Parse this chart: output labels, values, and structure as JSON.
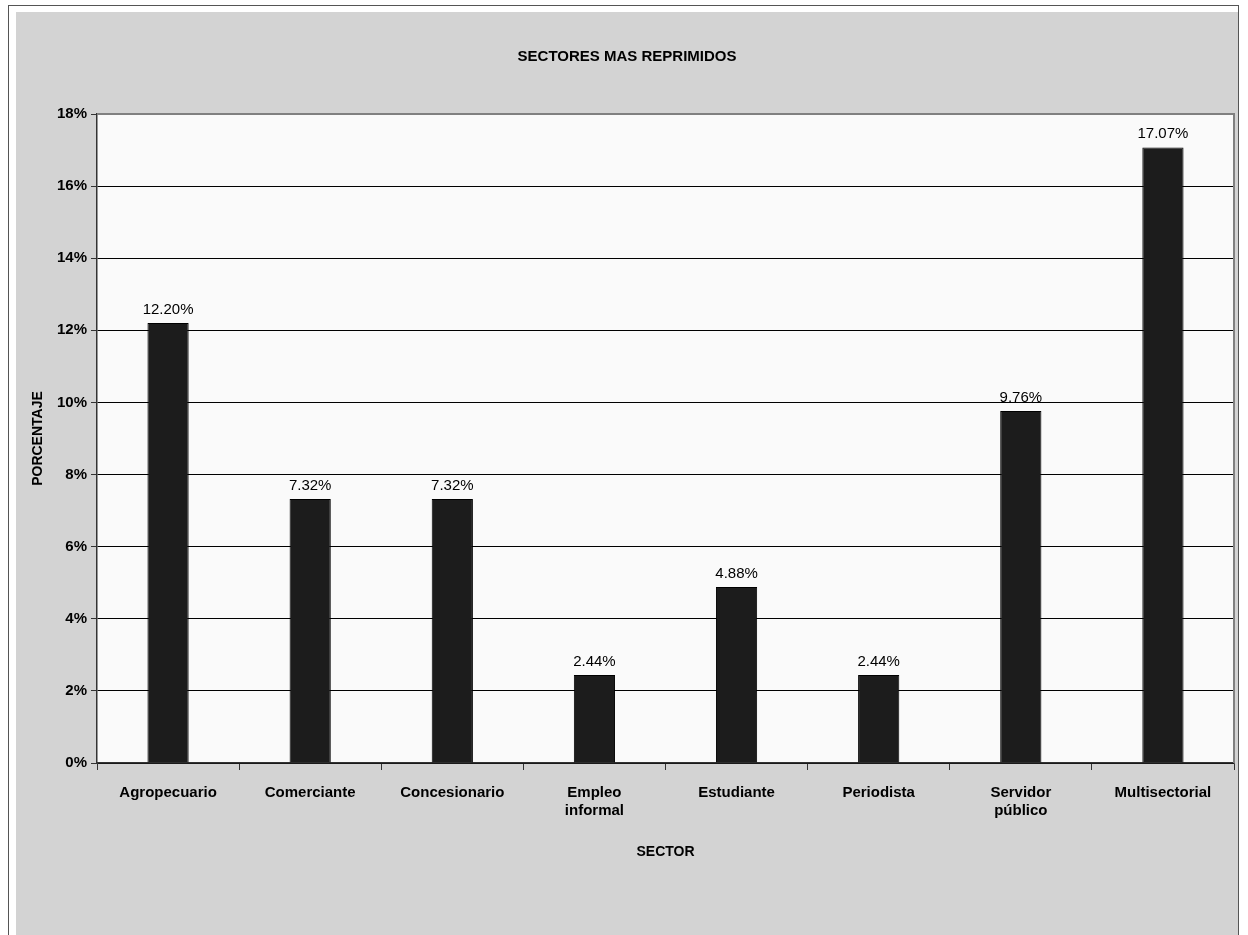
{
  "chart_data": {
    "type": "bar",
    "title": "SECTORES MAS REPRIMIDOS",
    "xlabel": "SECTOR",
    "ylabel": "PORCENTAJE",
    "categories": [
      "Agropecuario",
      "Comerciante",
      "Concesionario",
      "Empleo informal",
      "Estudiante",
      "Periodista",
      "Servidor público",
      "Multisectorial"
    ],
    "values": [
      12.2,
      7.32,
      7.32,
      2.44,
      4.88,
      2.44,
      9.76,
      17.07
    ],
    "value_labels": [
      "12.20%",
      "7.32%",
      "7.32%",
      "2.44%",
      "4.88%",
      "2.44%",
      "9.76%",
      "17.07%"
    ],
    "color": "#1c1c1c",
    "ylim": [
      0,
      18
    ],
    "yticks": [
      {
        "value": 0,
        "label": "0%"
      },
      {
        "value": 2,
        "label": "2%"
      },
      {
        "value": 4,
        "label": "4%"
      },
      {
        "value": 6,
        "label": "6%"
      },
      {
        "value": 8,
        "label": "8%"
      },
      {
        "value": 10,
        "label": "10%"
      },
      {
        "value": 12,
        "label": "12%"
      },
      {
        "value": 14,
        "label": "14%"
      },
      {
        "value": 16,
        "label": "16%"
      },
      {
        "value": 18,
        "label": "18%"
      }
    ],
    "grid": "y"
  }
}
